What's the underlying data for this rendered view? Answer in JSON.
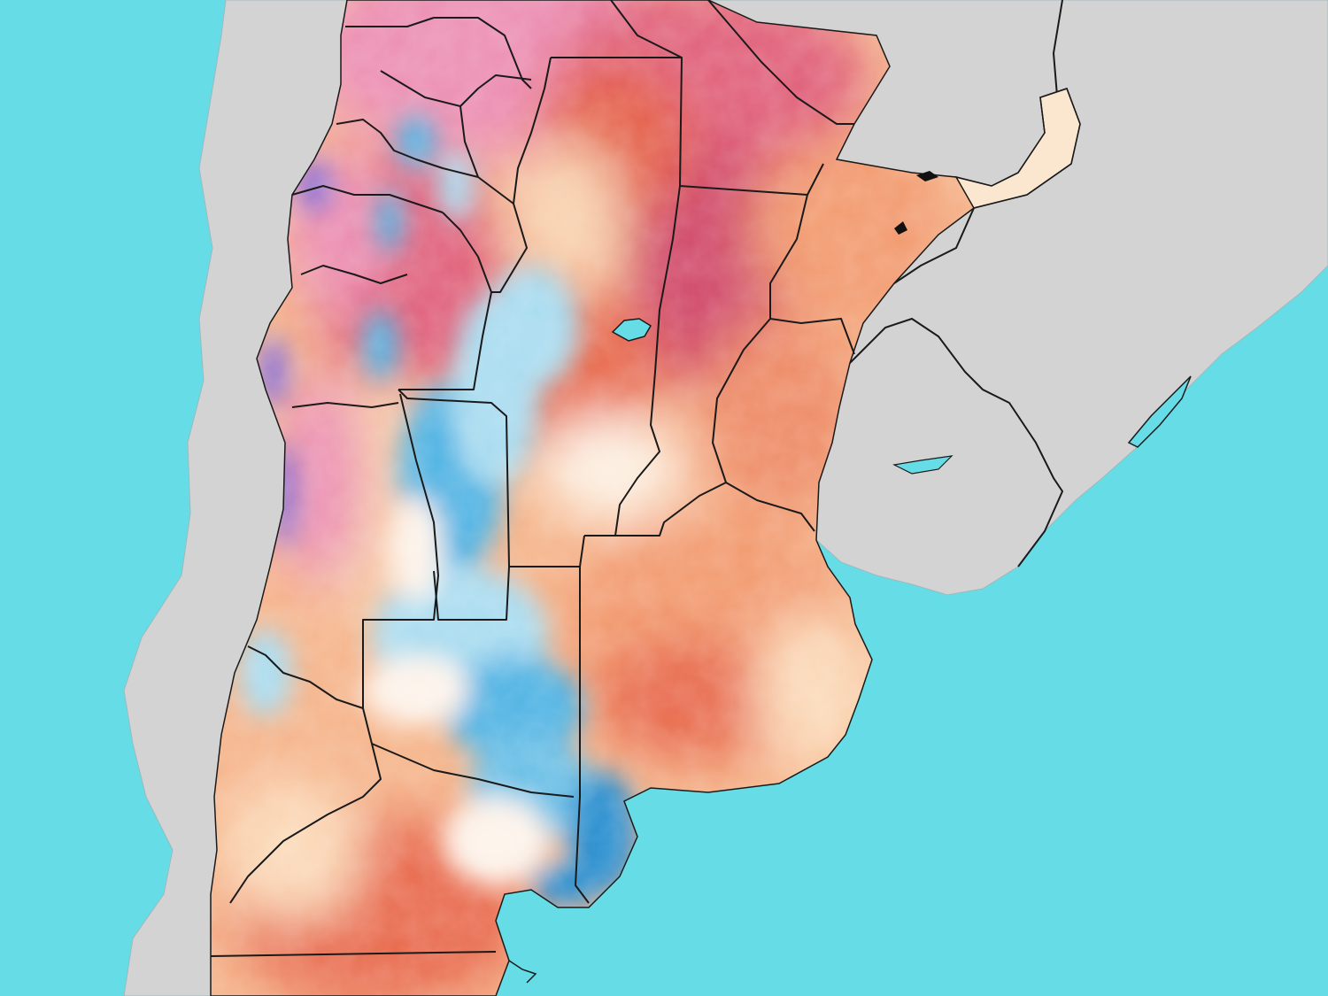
{
  "map": {
    "kind": "temperature-anomaly",
    "region": "Argentina",
    "colors": {
      "ocean": "#66dde6",
      "land": "#d3d3d3",
      "border": "#1a1a1a",
      "hot_deep": "#d04a6a",
      "hot": "#e4604a",
      "warm": "#f29a6e",
      "mild": "#fbd9b8",
      "neutral": "#fdf3ea",
      "cool": "#a9dcf0",
      "cold": "#4fb3e3",
      "cold_deep": "#2c8fcf",
      "violet": "#8a6fd6",
      "pink": "#ec8fb3"
    },
    "legend_visible": false,
    "labels_visible": false
  }
}
